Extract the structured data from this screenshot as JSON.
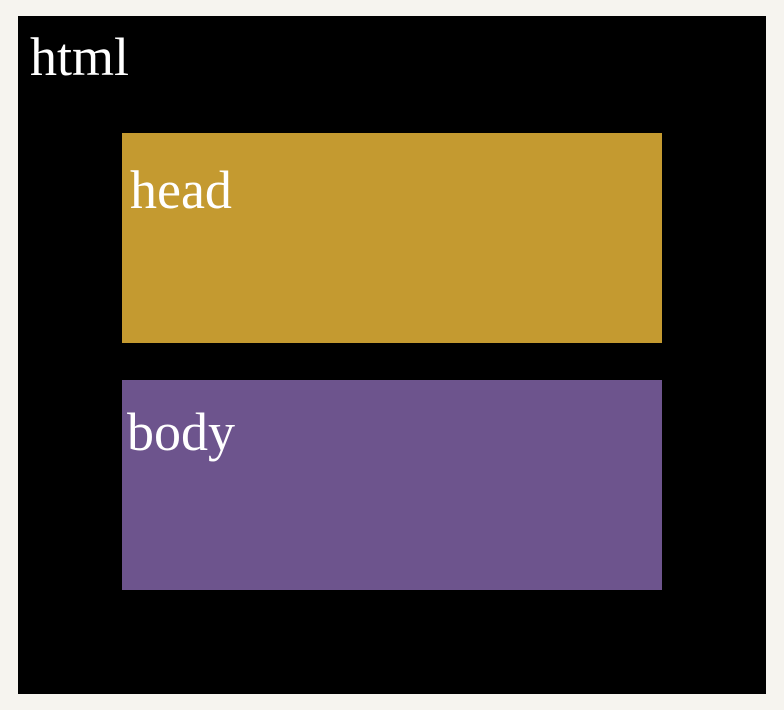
{
  "diagram": {
    "outer": {
      "label": "html",
      "color": "#000000"
    },
    "children": [
      {
        "label": "head",
        "color": "#c49a30"
      },
      {
        "label": "body",
        "color": "#6d548d"
      }
    ],
    "background": "#f6f4ef",
    "text_color": "#ffffff"
  }
}
